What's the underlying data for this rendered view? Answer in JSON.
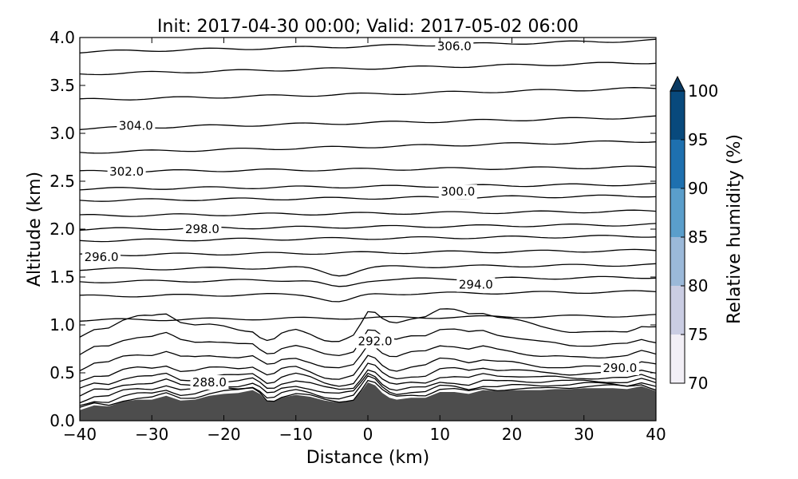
{
  "chart_data": {
    "type": "contour",
    "title": "Init: 2017-04-30 00:00; Valid: 2017-05-02 06:00",
    "xlabel": "Distance (km)",
    "ylabel": "Altitude (km)",
    "xlim": [
      -40,
      40
    ],
    "ylim": [
      0.0,
      4.0
    ],
    "xticks": [
      -40,
      -30,
      -20,
      -10,
      0,
      10,
      20,
      30,
      40
    ],
    "xtick_labels": [
      "−40",
      "−30",
      "−20",
      "−10",
      "0",
      "10",
      "20",
      "30",
      "40"
    ],
    "yticks": [
      0.0,
      0.5,
      1.0,
      1.5,
      2.0,
      2.5,
      3.0,
      3.5,
      4.0
    ],
    "ytick_labels": [
      "0.0",
      "0.5",
      "1.0",
      "1.5",
      "2.0",
      "2.5",
      "3.0",
      "3.5",
      "4.0"
    ],
    "terrain": {
      "color": "#4d4d4d",
      "x": [
        -40,
        -38,
        -36,
        -34,
        -32,
        -30,
        -28,
        -26,
        -24,
        -22,
        -20,
        -18,
        -16,
        -15,
        -14,
        -13,
        -12,
        -10,
        -8,
        -6,
        -4,
        -2,
        -1,
        0,
        1,
        2,
        3,
        4,
        6,
        8,
        10,
        12,
        14,
        16,
        18,
        20,
        22,
        24,
        26,
        28,
        30,
        32,
        34,
        36,
        38,
        40
      ],
      "elevation": [
        0.11,
        0.16,
        0.15,
        0.2,
        0.22,
        0.22,
        0.26,
        0.21,
        0.22,
        0.26,
        0.28,
        0.29,
        0.32,
        0.28,
        0.2,
        0.2,
        0.24,
        0.27,
        0.25,
        0.21,
        0.19,
        0.21,
        0.3,
        0.4,
        0.37,
        0.29,
        0.24,
        0.22,
        0.24,
        0.24,
        0.3,
        0.3,
        0.28,
        0.32,
        0.31,
        0.32,
        0.32,
        0.32,
        0.33,
        0.33,
        0.34,
        0.34,
        0.34,
        0.33,
        0.36,
        0.31
      ]
    },
    "contour_labels": [
      {
        "text": "306.0",
        "x": 12.0,
        "y": 3.91
      },
      {
        "text": "304.0",
        "x": -32.2,
        "y": 3.08
      },
      {
        "text": "302.0",
        "x": -33.5,
        "y": 2.6
      },
      {
        "text": "300.0",
        "x": 12.5,
        "y": 2.39
      },
      {
        "text": "298.0",
        "x": -23.0,
        "y": 2.0
      },
      {
        "text": "296.0",
        "x": -37.0,
        "y": 1.71
      },
      {
        "text": "294.0",
        "x": 15.0,
        "y": 1.42
      },
      {
        "text": "292.0",
        "x": 1.0,
        "y": 0.83
      },
      {
        "text": "290.0",
        "x": 35.0,
        "y": 0.55
      },
      {
        "text": "288.0",
        "x": -22.0,
        "y": 0.4
      }
    ],
    "colorbar": {
      "label": "Relative humidity (%)",
      "extend": "max",
      "levels": [
        70,
        75,
        80,
        85,
        90,
        95,
        100
      ],
      "tick_labels": [
        "70",
        "75",
        "80",
        "85",
        "90",
        "95",
        "100"
      ],
      "colors": [
        "#f2eff6",
        "#cacde3",
        "#9bb9d9",
        "#5a9ecb",
        "#1e70af",
        "#08497c"
      ],
      "extend_color": "#0a3a63"
    }
  }
}
